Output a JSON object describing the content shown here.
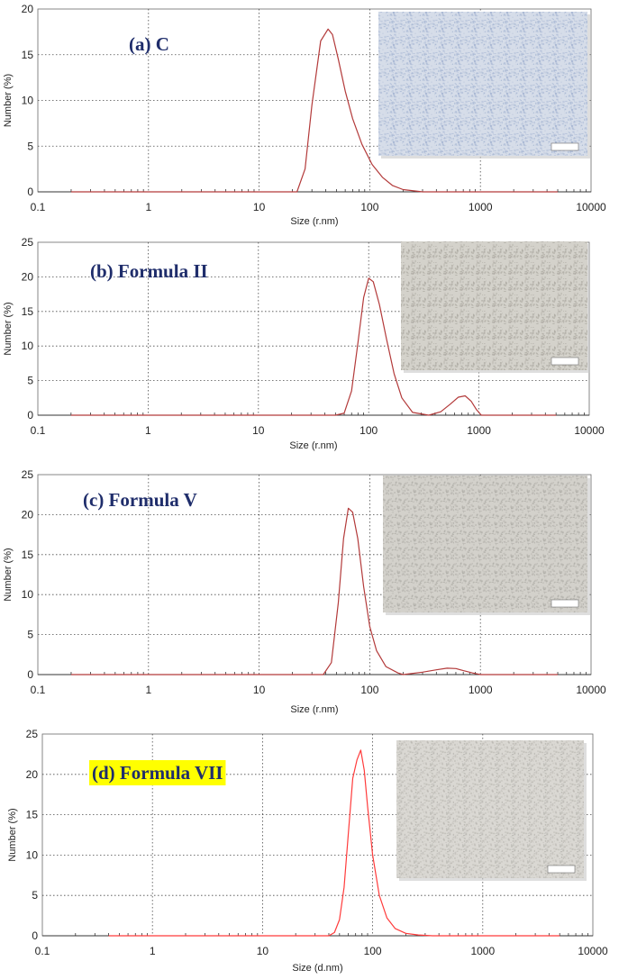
{
  "chart_data": [
    {
      "type": "line",
      "panel_label": "(a) C",
      "xlabel": "Size (r.nm)",
      "ylabel": "Number (%)",
      "xscale": "log",
      "xlim": [
        0.1,
        10000
      ],
      "ylim": [
        0,
        20
      ],
      "xticks": [
        "0.1",
        "1",
        "10",
        "100",
        "1000",
        "10000"
      ],
      "yticks": [
        "0",
        "5",
        "10",
        "15",
        "20"
      ],
      "grid": true,
      "line_color": "#b33a3a",
      "has_inset_micrograph": true,
      "inset_tint": [
        "#9fb0cf",
        "#d6dde9"
      ],
      "label_highlight": "",
      "series": [
        {
          "x": [
            0.2,
            1,
            10,
            22,
            26,
            30,
            36,
            42,
            46,
            52,
            60,
            70,
            85,
            105,
            130,
            160,
            200,
            300,
            500,
            1000,
            5000
          ],
          "y": [
            0,
            0,
            0,
            0,
            2.5,
            9.5,
            16.5,
            17.8,
            17.2,
            14.5,
            11,
            8,
            5.2,
            3,
            1.6,
            0.7,
            0.25,
            0,
            0,
            0,
            0
          ]
        }
      ]
    },
    {
      "type": "line",
      "panel_label": "(b)  Formula II",
      "xlabel": "Size (r.nm)",
      "ylabel": "Number (%)",
      "xscale": "log",
      "xlim": [
        0.1,
        10000
      ],
      "ylim": [
        0,
        25
      ],
      "xticks": [
        "0.1",
        "1",
        "10",
        "100",
        "1000",
        "10000"
      ],
      "yticks": [
        "0",
        "5",
        "10",
        "15",
        "20",
        "25"
      ],
      "grid": true,
      "line_color": "#b33a3a",
      "has_inset_micrograph": true,
      "inset_tint": [
        "#a7a49c",
        "#d4d2cb"
      ],
      "label_highlight": "",
      "series": [
        {
          "x": [
            0.2,
            1,
            10,
            50,
            60,
            70,
            80,
            90,
            100,
            110,
            125,
            145,
            170,
            200,
            250,
            350,
            450,
            550,
            650,
            750,
            850,
            950,
            1050,
            1200,
            5000
          ],
          "y": [
            0,
            0,
            0,
            0,
            0.3,
            3.5,
            10.5,
            17,
            19.8,
            19.3,
            16,
            11,
            6,
            2.5,
            0.4,
            0,
            0.5,
            1.6,
            2.6,
            2.8,
            2,
            0.8,
            0,
            0,
            0
          ]
        }
      ]
    },
    {
      "type": "line",
      "panel_label": "(c) Formula V",
      "xlabel": "Size (r.nm)",
      "ylabel": "Number (%)",
      "xscale": "log",
      "xlim": [
        0.1,
        10000
      ],
      "ylim": [
        0,
        25
      ],
      "xticks": [
        "0.1",
        "1",
        "10",
        "100",
        "1000",
        "10000"
      ],
      "yticks": [
        "0",
        "5",
        "10",
        "15",
        "20",
        "25"
      ],
      "grid": true,
      "line_color": "#b33a3a",
      "has_inset_micrograph": true,
      "inset_tint": [
        "#a9a7a1",
        "#d3d1cb"
      ],
      "label_highlight": "",
      "series": [
        {
          "x": [
            0.2,
            1,
            10,
            38,
            45,
            52,
            58,
            64,
            70,
            78,
            88,
            100,
            115,
            140,
            180,
            200,
            300,
            400,
            500,
            600,
            700,
            850,
            1000,
            5000
          ],
          "y": [
            0,
            0,
            0,
            0,
            1.5,
            9,
            17,
            20.8,
            20.3,
            17,
            11,
            6,
            3,
            1,
            0.2,
            0,
            0.3,
            0.6,
            0.8,
            0.75,
            0.5,
            0.2,
            0,
            0
          ]
        }
      ]
    },
    {
      "type": "line",
      "panel_label": "(d) Formula VII",
      "xlabel": "Size (d.nm)",
      "ylabel": "Number (%)",
      "xscale": "log",
      "xlim": [
        0.1,
        10000
      ],
      "ylim": [
        0,
        25
      ],
      "xticks": [
        "0.1",
        "1",
        "10",
        "100",
        "1000",
        "10000"
      ],
      "yticks": [
        "0",
        "5",
        "10",
        "15",
        "20",
        "25"
      ],
      "grid": true,
      "line_color": "#ff3b3b",
      "has_inset_micrograph": true,
      "inset_tint": [
        "#b3b1ab",
        "#dad8d3"
      ],
      "label_highlight": "#ffff00",
      "series": [
        {
          "x": [
            0.4,
            1,
            10,
            40,
            45,
            50,
            55,
            60,
            66,
            72,
            78,
            84,
            90,
            100,
            115,
            135,
            160,
            200,
            260,
            350,
            500,
            1000,
            5000
          ],
          "y": [
            0,
            0,
            0,
            0,
            0.4,
            2,
            6,
            12.5,
            19.5,
            21.8,
            23,
            20.5,
            16,
            10,
            5,
            2.2,
            0.9,
            0.3,
            0.1,
            0,
            0,
            0,
            0
          ]
        }
      ]
    }
  ]
}
